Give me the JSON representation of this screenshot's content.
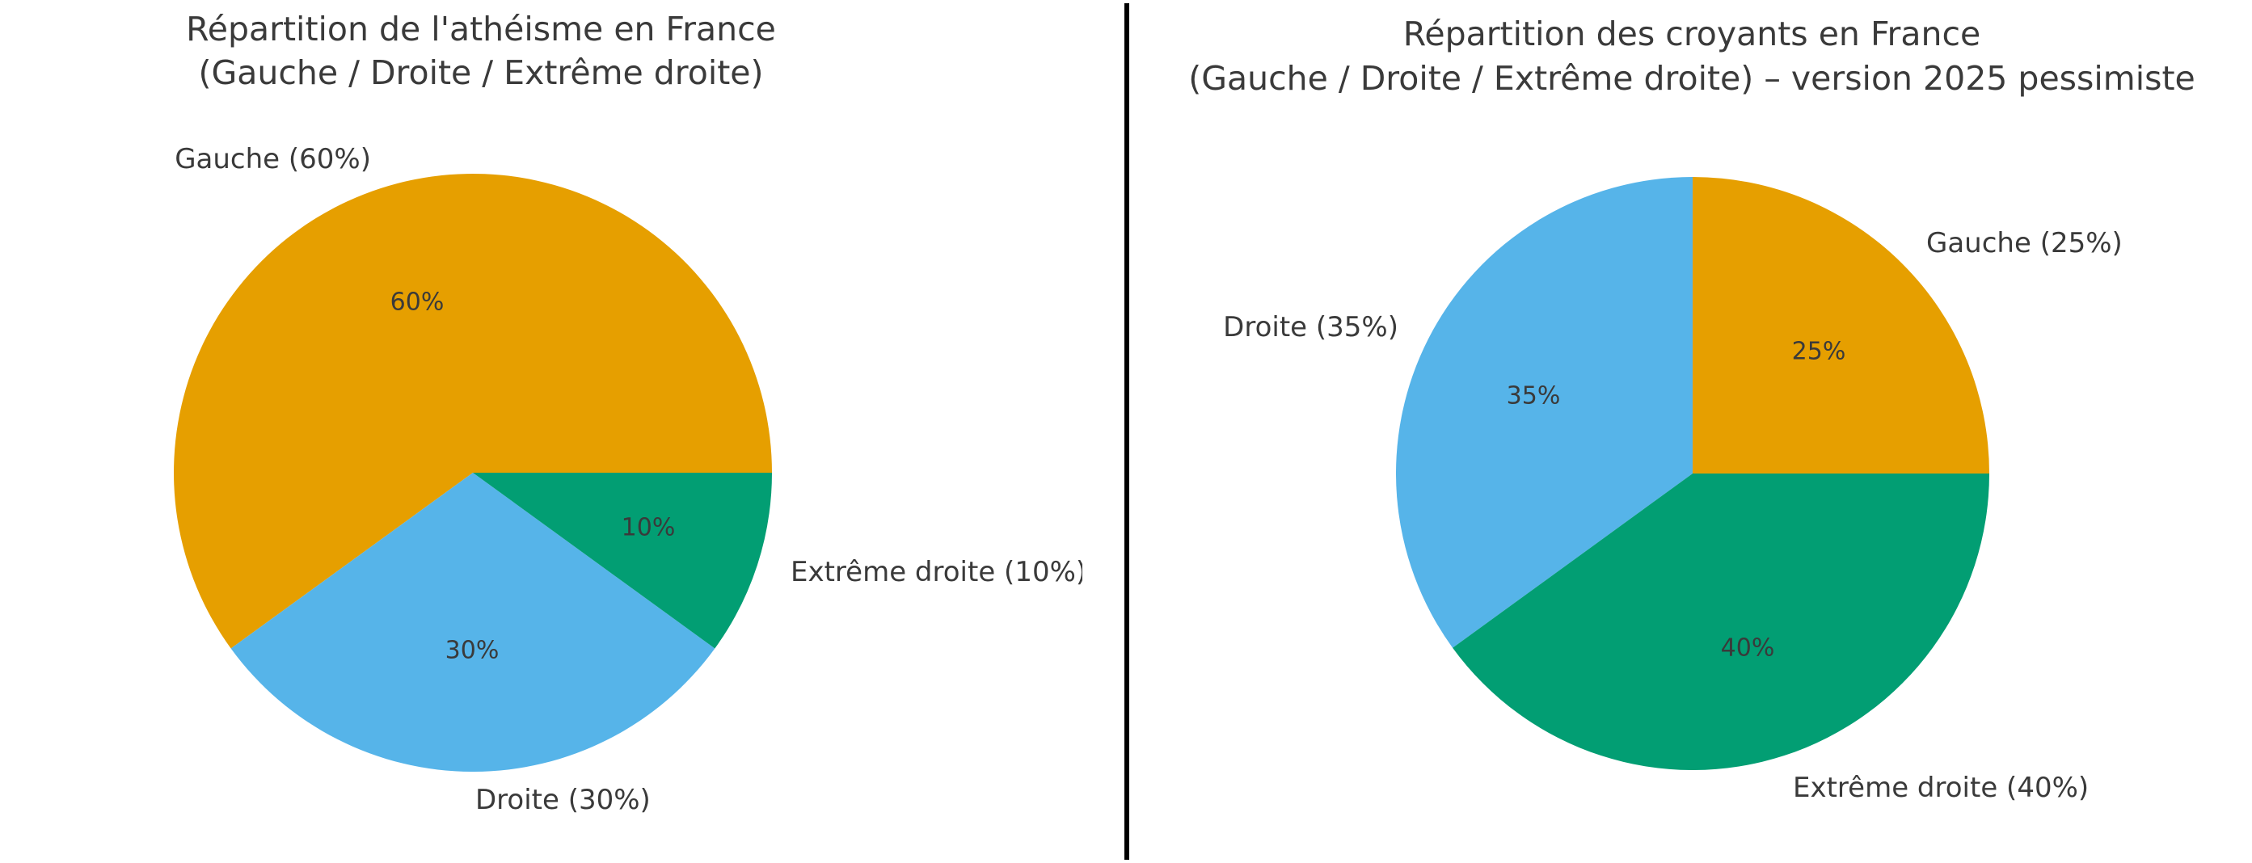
{
  "theme": {
    "background": "#ffffff",
    "text_color": "#3a3a3a",
    "divider_color": "#000000"
  },
  "chart_data": [
    {
      "type": "pie",
      "title_lines": [
        "Répartition de l'athéisme en France",
        "(Gauche / Droite / Extrême droite)"
      ],
      "start_angle_deg": 0,
      "direction": "counterclockwise",
      "legend": "none",
      "slices": [
        {
          "label": "Gauche",
          "value": 60,
          "outer_label": "Gauche (60%)",
          "pct_label": "60%",
          "color": "#E69F00"
        },
        {
          "label": "Droite",
          "value": 30,
          "outer_label": "Droite (30%)",
          "pct_label": "30%",
          "color": "#56B4E9"
        },
        {
          "label": "Extrême droite",
          "value": 10,
          "outer_label": "Extrême droite (10%)",
          "pct_label": "10%",
          "color": "#029E73"
        }
      ]
    },
    {
      "type": "pie",
      "title_lines": [
        "Répartition des croyants en France",
        "(Gauche / Droite / Extrême droite) – version 2025 pessimiste"
      ],
      "start_angle_deg": 0,
      "direction": "counterclockwise",
      "legend": "none",
      "slices": [
        {
          "label": "Gauche",
          "value": 25,
          "outer_label": "Gauche (25%)",
          "pct_label": "25%",
          "color": "#E69F00"
        },
        {
          "label": "Droite",
          "value": 35,
          "outer_label": "Droite (35%)",
          "pct_label": "35%",
          "color": "#56B4E9"
        },
        {
          "label": "Extrême droite",
          "value": 40,
          "outer_label": "Extrême droite (40%)",
          "pct_label": "40%",
          "color": "#029E73"
        }
      ]
    }
  ]
}
